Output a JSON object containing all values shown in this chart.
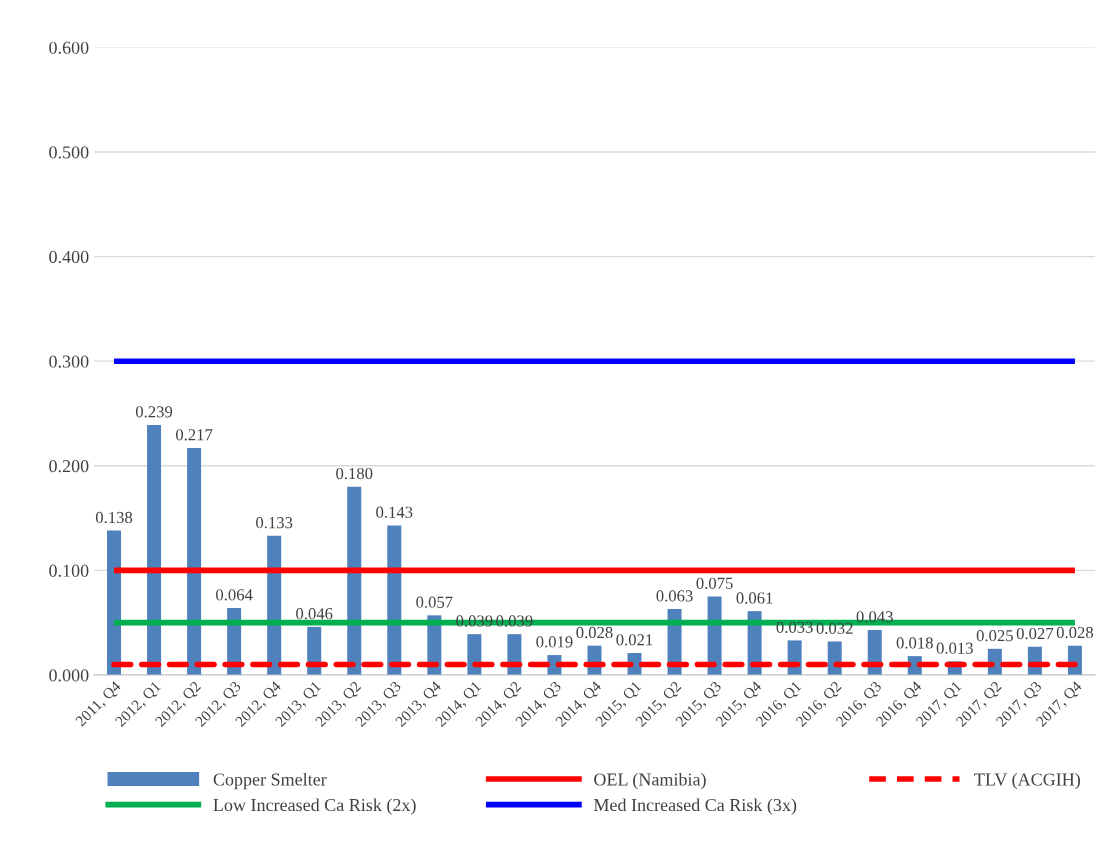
{
  "chart_data": {
    "type": "bar",
    "categories": [
      "2011, Q4",
      "2012, Q1",
      "2012, Q2",
      "2012, Q3",
      "2012, Q4",
      "2013, Q1",
      "2013, Q2",
      "2013, Q3",
      "2013, Q4",
      "2014, Q1",
      "2014, Q2",
      "2014, Q3",
      "2014, Q4",
      "2015, Q1",
      "2015, Q2",
      "2015, Q3",
      "2015, Q4",
      "2016, Q1",
      "2016, Q2",
      "2016, Q3",
      "2016, Q4",
      "2017, Q1",
      "2017, Q2",
      "2017, Q3",
      "2017, Q4"
    ],
    "series": [
      {
        "name": "Copper Smelter",
        "color": "#4f81bd",
        "values": [
          0.138,
          0.239,
          0.217,
          0.064,
          0.133,
          0.046,
          0.18,
          0.143,
          0.057,
          0.039,
          0.039,
          0.019,
          0.028,
          0.021,
          0.063,
          0.075,
          0.061,
          0.033,
          0.032,
          0.043,
          0.018,
          0.013,
          0.025,
          0.027,
          0.028
        ],
        "value_labels": [
          "0.138",
          "0.239",
          "0.217",
          "0.064",
          "0.133",
          "0.046",
          "0.180",
          "0.143",
          "0.057",
          "0.039",
          "0.039",
          "0.019",
          "0.028",
          "0.021",
          "0.063",
          "0.075",
          "0.061",
          "0.033",
          "0.032",
          "0.043",
          "0.018",
          "0.013",
          "0.025",
          "0.027",
          "0.028"
        ]
      },
      {
        "name": "OEL (Namibia)",
        "type": "line",
        "color": "#ff0000",
        "line_style": "solid",
        "values": [
          0.1,
          0.1,
          0.1,
          0.1,
          0.1,
          0.1,
          0.1,
          0.1,
          0.1,
          0.1,
          0.1,
          0.1,
          0.1,
          0.1,
          0.1,
          0.1,
          0.1,
          0.1,
          0.1,
          0.1,
          0.1,
          0.1,
          0.1,
          0.1,
          0.1
        ]
      },
      {
        "name": "TLV (ACGIH)",
        "type": "line",
        "color": "#ff0000",
        "line_style": "dashed",
        "values": [
          0.01,
          0.01,
          0.01,
          0.01,
          0.01,
          0.01,
          0.01,
          0.01,
          0.01,
          0.01,
          0.01,
          0.01,
          0.01,
          0.01,
          0.01,
          0.01,
          0.01,
          0.01,
          0.01,
          0.01,
          0.01,
          0.01,
          0.01,
          0.01,
          0.01
        ]
      },
      {
        "name": "Low Increased Ca Risk (2x)",
        "type": "line",
        "color": "#00b050",
        "line_style": "solid",
        "values": [
          0.05,
          0.05,
          0.05,
          0.05,
          0.05,
          0.05,
          0.05,
          0.05,
          0.05,
          0.05,
          0.05,
          0.05,
          0.05,
          0.05,
          0.05,
          0.05,
          0.05,
          0.05,
          0.05,
          0.05,
          0.05,
          0.05,
          0.05,
          0.05,
          0.05
        ]
      },
      {
        "name": "Med Increased Ca Risk (3x)",
        "type": "line",
        "color": "#0000ff",
        "line_style": "solid",
        "values": [
          0.3,
          0.3,
          0.3,
          0.3,
          0.3,
          0.3,
          0.3,
          0.3,
          0.3,
          0.3,
          0.3,
          0.3,
          0.3,
          0.3,
          0.3,
          0.3,
          0.3,
          0.3,
          0.3,
          0.3,
          0.3,
          0.3,
          0.3,
          0.3,
          0.3
        ]
      }
    ],
    "ylim": [
      0,
      0.6
    ],
    "yticks": [
      {
        "value": 0,
        "label": "0.000"
      },
      {
        "value": 0.1,
        "label": "0.100"
      },
      {
        "value": 0.2,
        "label": "0.200"
      },
      {
        "value": 0.3,
        "label": "0.300"
      },
      {
        "value": 0.4,
        "label": "0.400"
      },
      {
        "value": 0.5,
        "label": "0.500"
      },
      {
        "value": 0.6,
        "label": "0.600"
      }
    ],
    "grid": "y",
    "legend": "bottom"
  }
}
